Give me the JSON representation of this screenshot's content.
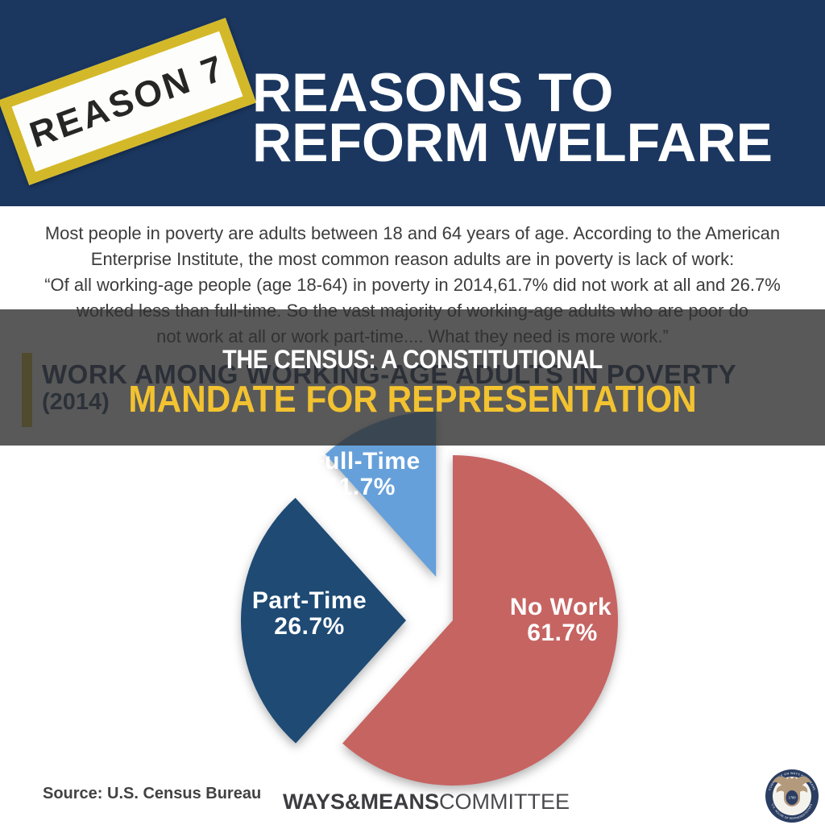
{
  "header": {
    "stamp": {
      "label": "REASON 7",
      "border_color": "#d3b929",
      "text_color": "#262626"
    },
    "title_line1": "REASONS TO",
    "title_line2": "REFORM WELFARE",
    "bg_color": "#1b3760"
  },
  "intro": {
    "lines": [
      "Most people in poverty are adults between 18 and 64 years of age. According to the American",
      "Enterprise Institute, the most common reason adults are in poverty is lack of work:",
      "“Of all working-age people (age 18-64) in poverty in 2014,61.7% did not work at all and 26.7%",
      "worked less than full-time. So the vast majority of working-age adults who are poor do",
      "not work at all or work part-time.... What they need is more work.”"
    ]
  },
  "overlay_banner": {
    "line1": "THE CENSUS: A CONSTITUTIONAL",
    "line2": "MANDATE FOR REPRESENTATION",
    "line1_color": "#ffffff",
    "line2_color": "#f2c230"
  },
  "chart_header": {
    "title": "WORK AMONG WORKING-AGE ADULTS IN POVERTY",
    "subtitle": "(2014)",
    "accent_bar_color": "#d3b929"
  },
  "chart_data": {
    "type": "pie",
    "title": "WORK AMONG WORKING-AGE ADULTS IN POVERTY (2014)",
    "direction": "clockwise",
    "start_angle_deg": 0,
    "labels_inside": true,
    "slices": [
      {
        "label": "No Work",
        "value": 61.7,
        "color": "#c66462",
        "exploded": false
      },
      {
        "label": "Part-Time",
        "value": 26.7,
        "color": "#1e4a74",
        "exploded": true
      },
      {
        "label": "Full-Time",
        "value": 11.7,
        "color": "#66a0da",
        "exploded": true
      }
    ],
    "source": "U.S. Census Bureau"
  },
  "footer": {
    "source_label": "Source: U.S. Census Bureau",
    "logo_bold": "WAYS&MEANS",
    "logo_light": "COMMITTEE",
    "seal": {
      "ring_text_top": "COMMITTEE ON WAYS AND MEANS",
      "ring_text_bottom": "U.S. HOUSE OF REPRESENTATIVES",
      "year": "1789",
      "ring_color": "#2b3e62",
      "eagle_color": "#b49a7c"
    }
  }
}
